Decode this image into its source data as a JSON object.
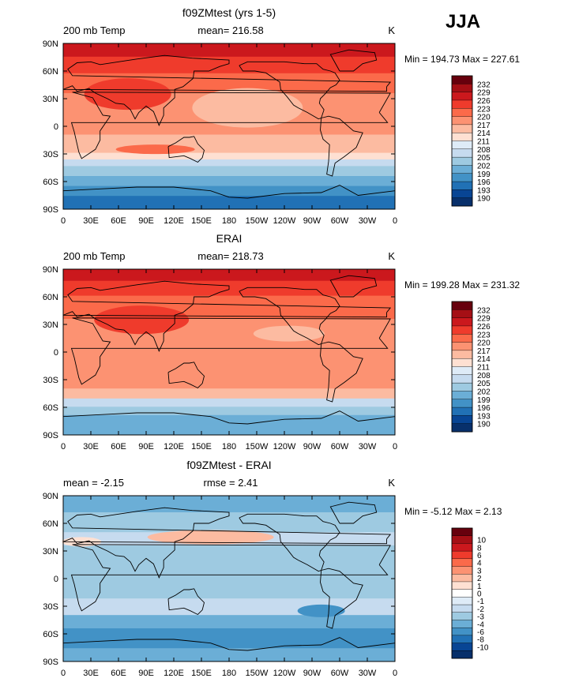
{
  "season": "JJA",
  "lon_labels": [
    "0",
    "30E",
    "60E",
    "90E",
    "120E",
    "150E",
    "180",
    "150W",
    "120W",
    "90W",
    "60W",
    "30W",
    "0"
  ],
  "lat_labels": [
    "90N",
    "60N",
    "30N",
    "0",
    "30S",
    "60S",
    "90S"
  ],
  "panels": [
    {
      "title": "f09ZMtest (yrs 1-5)",
      "left_label": "200 mb Temp",
      "center_label": "mean= 216.58",
      "right_label": "K",
      "min_max": "Min = 194.73 Max = 227.61",
      "colorbar_labels": [
        "232",
        "229",
        "226",
        "223",
        "220",
        "217",
        "214",
        "211",
        "208",
        "205",
        "202",
        "199",
        "196",
        "193",
        "190"
      ]
    },
    {
      "title": "ERAI",
      "left_label": "200 mb Temp",
      "center_label": "mean= 218.73",
      "right_label": "K",
      "min_max": "Min = 199.28 Max = 231.32",
      "colorbar_labels": [
        "232",
        "229",
        "226",
        "223",
        "220",
        "217",
        "214",
        "211",
        "208",
        "205",
        "202",
        "199",
        "196",
        "193",
        "190"
      ]
    },
    {
      "title": "f09ZMtest - ERAI",
      "left_label": "mean =   -2.15",
      "center_label": "rmse =    2.41",
      "right_label": "K",
      "min_max": "Min =   -5.12 Max =    2.13",
      "colorbar_labels": [
        "10",
        "8",
        "6",
        "4",
        "3",
        "2",
        "1",
        "0",
        "-1",
        "-2",
        "-3",
        "-4",
        "-6",
        "-8",
        "-10"
      ]
    }
  ],
  "colors": {
    "abs_scale": [
      "#67000d",
      "#a50f15",
      "#cb181d",
      "#ef3b2c",
      "#fb6a4a",
      "#fc9272",
      "#fcbba1",
      "#fee0d2",
      "#deebf7",
      "#c6dbef",
      "#9ecae1",
      "#6baed6",
      "#4292c6",
      "#2171b5",
      "#084594",
      "#08306b"
    ],
    "diff_scale": [
      "#67000d",
      "#a50f15",
      "#cb181d",
      "#ef3b2c",
      "#fb6a4a",
      "#fc9272",
      "#fcbba1",
      "#fee0d2",
      "#ffffff",
      "#deebf7",
      "#c6dbef",
      "#9ecae1",
      "#6baed6",
      "#4292c6",
      "#2171b5",
      "#084594",
      "#08306b"
    ]
  }
}
